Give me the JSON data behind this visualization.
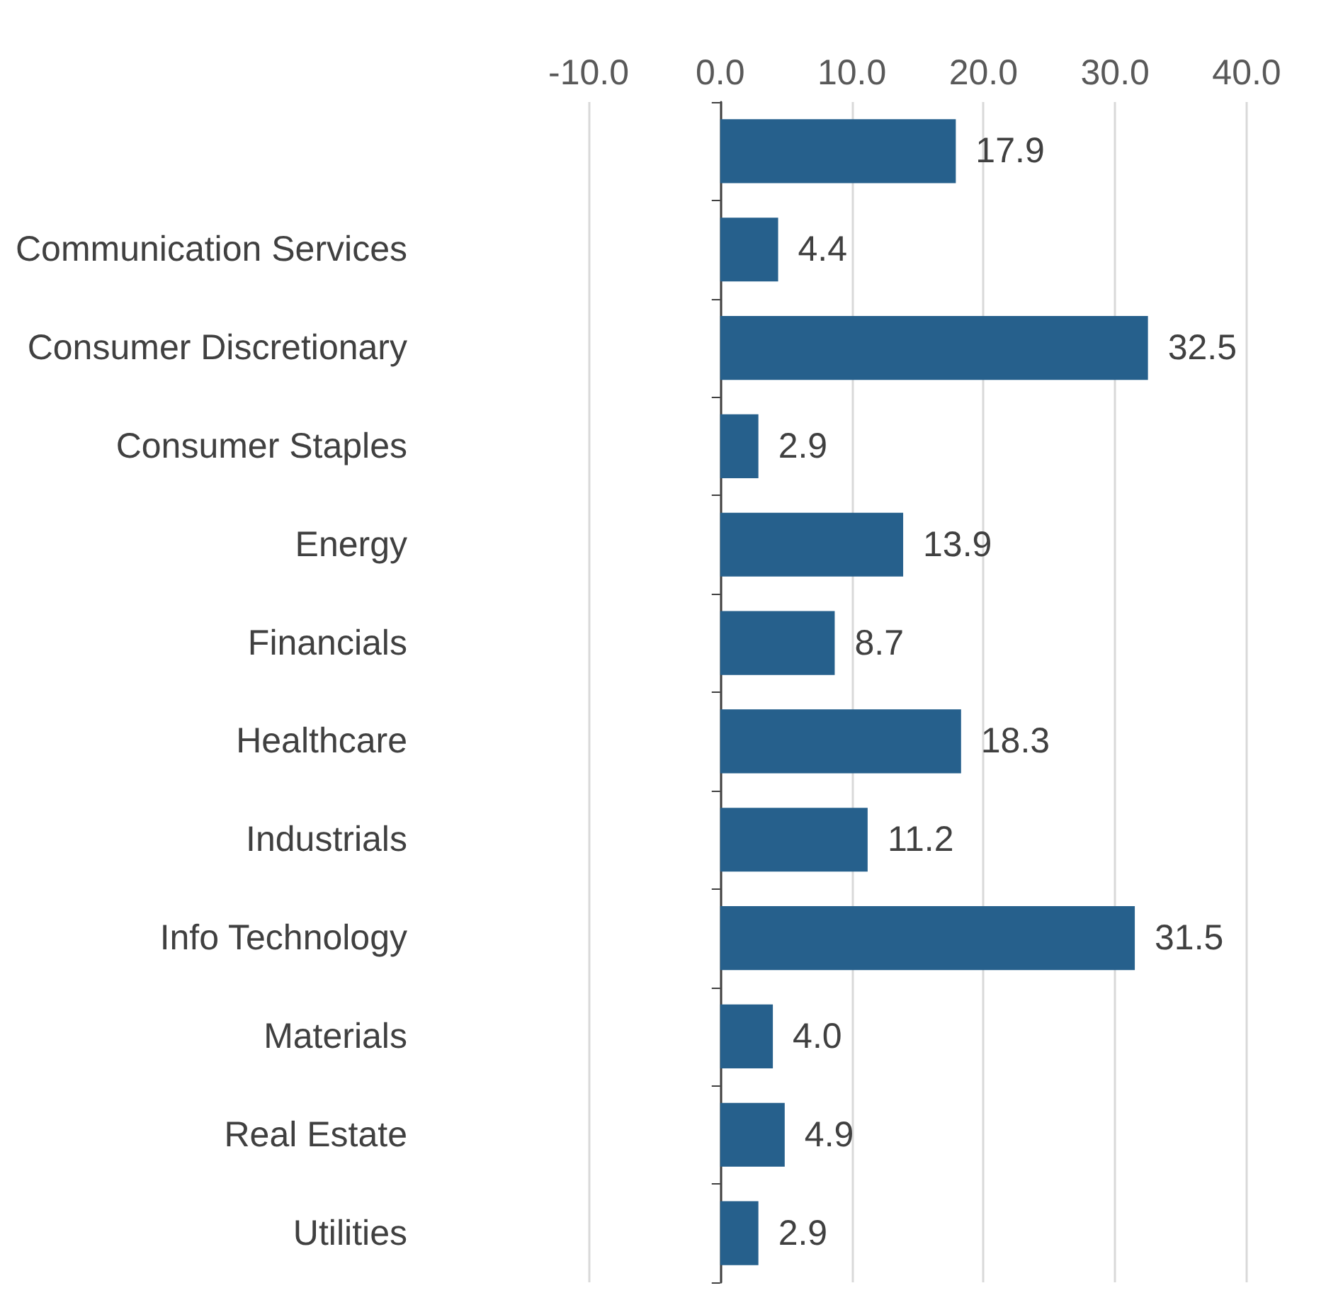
{
  "chart_data": {
    "type": "bar",
    "orientation": "horizontal",
    "categories": [
      null,
      "Communication Services",
      "Consumer Discretionary",
      "Consumer Staples",
      "Energy",
      "Financials",
      "Healthcare",
      "Industrials",
      "Info Technology",
      "Materials",
      "Real Estate",
      "Utilities"
    ],
    "values": [
      17.9,
      4.4,
      32.5,
      2.9,
      13.9,
      8.7,
      18.3,
      11.2,
      31.5,
      4.0,
      4.9,
      2.9
    ],
    "value_labels": [
      "17.9",
      "4.4",
      "32.5",
      "2.9",
      "13.9",
      "8.7",
      "18.3",
      "11.2",
      "31.5",
      "4.0",
      "4.9",
      "2.9"
    ],
    "color": "#26608c",
    "xlim": [
      -10,
      40
    ],
    "xticks": [
      {
        "value": -10,
        "label": "-10.0"
      },
      {
        "value": 0,
        "label": "0.0"
      },
      {
        "value": 10,
        "label": "10.0"
      },
      {
        "value": 20,
        "label": "20.0"
      },
      {
        "value": 30,
        "label": "30.0"
      },
      {
        "value": 40,
        "label": "40.0"
      }
    ],
    "grid": "x"
  }
}
